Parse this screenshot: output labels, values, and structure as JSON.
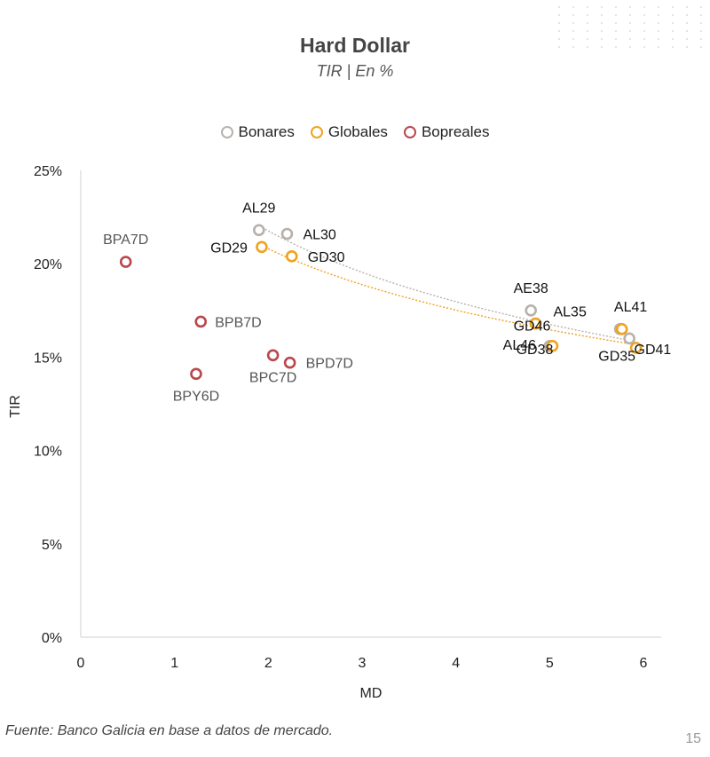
{
  "chart_data": {
    "type": "scatter",
    "title": "Hard Dollar",
    "subtitle": "TIR | En %",
    "xlabel": "MD",
    "ylabel": "TIR",
    "xlim": [
      0,
      6
    ],
    "ylim": [
      0,
      25
    ],
    "x_ticks": [
      "0",
      "1",
      "2",
      "3",
      "4",
      "5",
      "6"
    ],
    "y_ticks": [
      "0%",
      "5%",
      "10%",
      "15%",
      "20%",
      "25%"
    ],
    "grid": false,
    "legend_position": "top",
    "series": [
      {
        "name": "Bonares",
        "color": "#b8b1ab",
        "trendline": true,
        "points": [
          {
            "label": "AL29",
            "x": 1.9,
            "y": 21.8
          },
          {
            "label": "AL30",
            "x": 2.2,
            "y": 21.6
          },
          {
            "label": "AE38",
            "x": 4.8,
            "y": 17.5
          },
          {
            "label": "AL35",
            "x": 4.85,
            "y": 16.8
          },
          {
            "label": "AL41",
            "x": 5.75,
            "y": 16.5
          },
          {
            "label": "AL46",
            "x": 5.0,
            "y": 15.6
          },
          {
            "label": "GD35",
            "x": 5.85,
            "y": 16.0
          }
        ]
      },
      {
        "name": "Globales",
        "color": "#f0a21e",
        "trendline": true,
        "points": [
          {
            "label": "GD29",
            "x": 1.93,
            "y": 20.9
          },
          {
            "label": "GD30",
            "x": 2.25,
            "y": 20.4
          },
          {
            "label": "GD46",
            "x": 4.85,
            "y": 16.8
          },
          {
            "label": "GD38",
            "x": 5.03,
            "y": 15.6
          },
          {
            "label": "GD41",
            "x": 5.92,
            "y": 15.5
          },
          {
            "label": "",
            "x": 5.77,
            "y": 16.5
          }
        ]
      },
      {
        "name": "Bopreales",
        "color": "#b8474c",
        "trendline": false,
        "points": [
          {
            "label": "BPA7D",
            "x": 0.48,
            "y": 20.1
          },
          {
            "label": "BPB7D",
            "x": 1.28,
            "y": 16.9
          },
          {
            "label": "BPY6D",
            "x": 1.23,
            "y": 14.1
          },
          {
            "label": "BPC7D",
            "x": 2.05,
            "y": 15.1
          },
          {
            "label": "BPD7D",
            "x": 2.23,
            "y": 14.7
          }
        ]
      }
    ]
  },
  "footer": {
    "source": "Fuente: Banco Galicia en base a datos de mercado.",
    "page_number": "15"
  }
}
